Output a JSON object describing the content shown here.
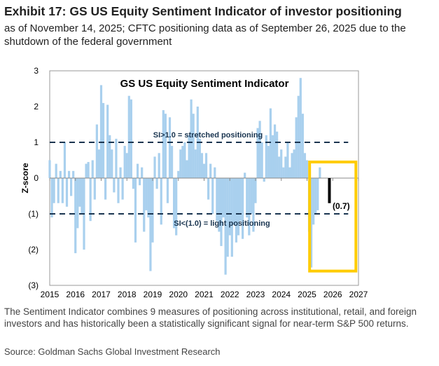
{
  "header": {
    "title": "Exhibit 17: GS US Equity Sentiment Indicator of investor positioning",
    "subtitle": "as of November 14, 2025; CFTC positioning data as of September 26, 2025 due to the shutdown of the federal government"
  },
  "footer": {
    "note": "The Sentiment Indicator combines 9 measures of positioning across institutional, retail, and foreign investors and has historically been a statistically significant signal for near-term S&P 500 returns.",
    "source": "Source: Goldman Sachs Global Investment Research"
  },
  "chart_data": {
    "type": "bar",
    "title": "GS US Equity Sentiment Indicator",
    "ylabel": "Z-score",
    "xlabel": "",
    "ylim": [
      -3,
      3
    ],
    "xlim": [
      2015,
      2027
    ],
    "y_ticks": [
      "3",
      "2",
      "1",
      "0",
      "(1)",
      "(2)",
      "(3)"
    ],
    "x_ticks": [
      "2015",
      "2016",
      "2017",
      "2018",
      "2019",
      "2020",
      "2021",
      "2022",
      "2023",
      "2024",
      "2025",
      "2026",
      "2027"
    ],
    "annotations": {
      "upper": "SI>1.0 = stretched positioning",
      "lower": "SI<(1.0) = light positioning",
      "latest": "(0.7)"
    },
    "thresholds": [
      1.0,
      -1.0
    ],
    "series": [
      {
        "name": "Sentiment Indicator",
        "color": "#a9d0ee",
        "start": 2015.0,
        "step_years": 0.08333,
        "values": [
          0.5,
          -1.1,
          -0.7,
          0.4,
          -0.7,
          0.2,
          -0.7,
          1.0,
          -0.8,
          0.2,
          -0.5,
          0.2,
          -2.1,
          -1.4,
          -0.8,
          -1.0,
          -2.0,
          0.4,
          0.45,
          -1.2,
          0.5,
          -0.6,
          1.5,
          0.8,
          2.6,
          2.1,
          -0.6,
          2.05,
          1.2,
          0.8,
          -0.4,
          1.1,
          -0.7,
          0.3,
          -0.6,
          0.9,
          0.7,
          2.3,
          2.2,
          -0.3,
          -1.8,
          0.4,
          -0.2,
          0.3,
          -1.5,
          -0.9,
          -1.1,
          -2.6,
          -1.8,
          0.6,
          -0.3,
          0.7,
          -1.3,
          1.9,
          1.8,
          -0.7,
          1.7,
          0.9,
          -1.4,
          -1.6,
          0.2,
          0.8,
          0.9,
          1.0,
          0.5,
          1.2,
          2.2,
          1.8,
          0.8,
          2.0,
          1.1,
          0.7,
          0.4,
          0.7,
          -0.6,
          0.4,
          -1.0,
          0.3,
          -1.2,
          -1.5,
          -1.9,
          -1.1,
          -2.7,
          -2.2,
          -1.6,
          -2.2,
          -1.3,
          -1.8,
          -1.6,
          -1.2,
          -1.7,
          0.15,
          -1.1,
          -1.6,
          -1.0,
          -1.5,
          -0.7,
          1.4,
          1.6,
          1.0,
          -0.1,
          1.2,
          0.9,
          1.95,
          1.2,
          1.5,
          1.3,
          0.6,
          0.8,
          0.3,
          0.6,
          1.0,
          0.3,
          0.7,
          0.8,
          1.7,
          2.3,
          2.8,
          1.8,
          0.7,
          0.5,
          -1.5,
          -2.5,
          -1.3,
          -1.0,
          -0.9,
          0.3
        ]
      }
    ],
    "latest": {
      "x": 2025.87,
      "value": -0.7,
      "color": "#000000"
    },
    "highlight": {
      "x": [
        2025.1,
        2026.9
      ],
      "y": [
        0.45,
        -2.6
      ],
      "color": "#ffcc00"
    },
    "grid": false
  }
}
